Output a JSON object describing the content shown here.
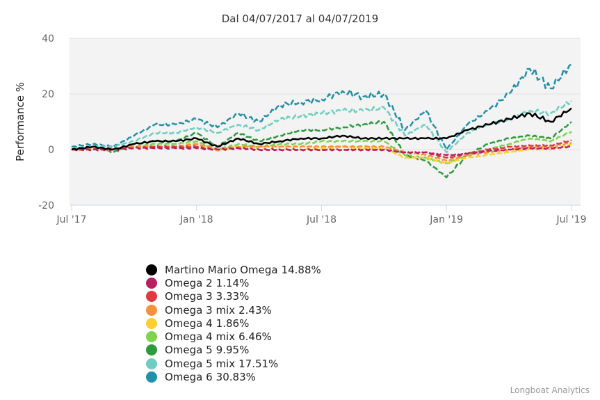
{
  "chart_data": {
    "type": "line",
    "title": "Dal 04/07/2017 al 04/07/2019",
    "ylabel": "Performance %",
    "ylim": [
      -20,
      40
    ],
    "yticks": [
      -20,
      0,
      20,
      40
    ],
    "grid": true,
    "legend_placement": "bottom",
    "x": [
      "2017-07",
      "2017-08",
      "2017-09",
      "2017-10",
      "2017-11",
      "2017-12",
      "2018-01",
      "2018-02",
      "2018-03",
      "2018-04",
      "2018-05",
      "2018-06",
      "2018-07",
      "2018-08",
      "2018-09",
      "2018-10",
      "2018-11",
      "2018-12",
      "2019-01",
      "2019-02",
      "2019-03",
      "2019-04",
      "2019-05",
      "2019-06",
      "2019-07"
    ],
    "xticks": [
      {
        "label": "Jul '17",
        "at": "2017-07"
      },
      {
        "label": "Jan '18",
        "at": "2018-01"
      },
      {
        "label": "Jul '18",
        "at": "2018-07"
      },
      {
        "label": "Jan '19",
        "at": "2019-01"
      },
      {
        "label": "Jul '19",
        "at": "2019-07"
      }
    ],
    "series": [
      {
        "name": "Martino Mario Omega",
        "final": "14.88%",
        "color": "#000000",
        "dashed": false,
        "values": [
          0,
          1,
          0,
          2,
          3,
          3,
          4,
          1,
          4,
          2,
          3,
          4,
          4,
          5,
          4,
          4,
          4,
          4,
          4,
          7,
          9,
          11,
          13,
          10,
          14.88
        ]
      },
      {
        "name": "Omega 2",
        "final": "1.14%",
        "color": "#b8215e",
        "dashed": true,
        "values": [
          0,
          0,
          0,
          0.5,
          0.5,
          0.5,
          0.5,
          0,
          0.5,
          0,
          0,
          0,
          0,
          0,
          0,
          0,
          -1,
          -1,
          -2,
          -1.5,
          -0.5,
          0,
          0.5,
          0.5,
          1.14
        ]
      },
      {
        "name": "Omega 3",
        "final": "3.33%",
        "color": "#e03a3e",
        "dashed": true,
        "values": [
          0,
          0,
          0,
          0.5,
          1,
          1,
          1,
          0,
          0.5,
          0,
          0,
          0,
          0,
          0,
          0,
          0,
          -1,
          -1,
          -3,
          -1.5,
          0,
          1,
          1.5,
          1.5,
          3.33
        ]
      },
      {
        "name": "Omega 3 mix",
        "final": "2.43%",
        "color": "#f7923a",
        "dashed": true,
        "values": [
          0,
          0,
          0,
          1,
          1,
          1,
          2,
          0,
          1,
          1,
          1,
          1,
          1,
          1,
          1,
          1,
          -1,
          -2,
          -4,
          -2,
          -1,
          0,
          1,
          1,
          2.43
        ]
      },
      {
        "name": "Omega 4",
        "final": "1.86%",
        "color": "#f9d030",
        "dashed": true,
        "values": [
          0,
          0,
          0,
          1,
          1,
          1,
          2,
          -0.5,
          1,
          0,
          0,
          0,
          0.5,
          1,
          0.5,
          0.5,
          -3,
          -3,
          -5,
          -3,
          -2,
          -1,
          0,
          0,
          1.86
        ]
      },
      {
        "name": "Omega 4 mix",
        "final": "6.46%",
        "color": "#7ed34f",
        "dashed": true,
        "values": [
          0,
          0,
          0,
          1,
          2,
          2,
          3,
          0,
          2,
          1,
          2,
          2,
          3,
          3,
          3,
          3,
          -2,
          -3,
          -5,
          -2,
          0,
          2,
          4,
          3,
          6.46
        ]
      },
      {
        "name": "Omega 5",
        "final": "9.95%",
        "color": "#2e9a3e",
        "dashed": true,
        "values": [
          0,
          1,
          -1,
          2,
          3,
          3,
          6,
          1,
          6,
          3,
          5,
          7,
          7,
          8,
          9,
          10,
          -2,
          -4,
          -10,
          -2,
          2,
          4,
          5,
          4,
          9.95
        ]
      },
      {
        "name": "Omega 5 mix",
        "final": "17.51%",
        "color": "#6fcdc0",
        "dashed": true,
        "values": [
          0,
          1,
          1,
          3,
          6,
          6,
          8,
          6,
          9,
          7,
          11,
          12,
          13,
          14,
          14,
          15,
          5,
          9,
          -1,
          6,
          9,
          11,
          14,
          13,
          17.51
        ]
      },
      {
        "name": "Omega 6",
        "final": "30.83%",
        "color": "#2190a8",
        "dashed": true,
        "values": [
          1,
          2,
          1,
          5,
          9,
          9,
          11,
          8,
          13,
          10,
          16,
          17,
          18,
          21,
          19,
          20,
          7,
          14,
          0,
          9,
          14,
          20,
          29,
          22,
          30.83
        ]
      }
    ]
  },
  "credit": "Longboat Analytics"
}
